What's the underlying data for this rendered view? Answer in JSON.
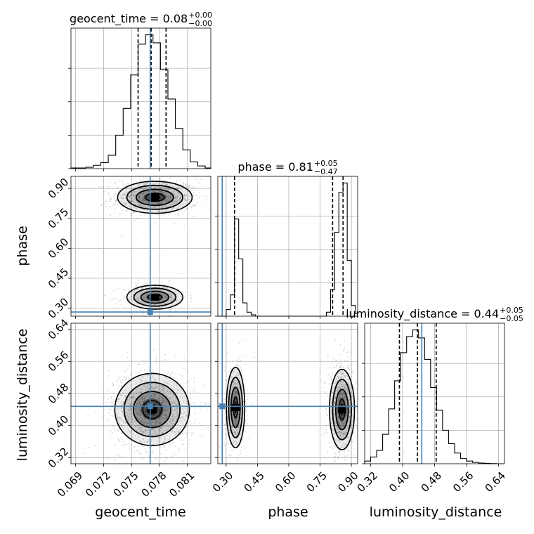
{
  "chart_data": {
    "type": "corner",
    "params": [
      "geocent_time",
      "phase",
      "luminosity_distance"
    ],
    "truths": {
      "geocent_time": 0.077,
      "phase": 0.281,
      "luminosity_distance": 0.448
    },
    "panels": [
      {
        "kind": "hist",
        "param": "geocent_time",
        "title_main": "geocent_time = 0.08",
        "title_sup": "+0.00",
        "title_sub": "−0.00",
        "xlim": [
          0.0685,
          0.0835
        ],
        "bins": [
          0.0685,
          0.0693,
          0.0701,
          0.0709,
          0.0717,
          0.0725,
          0.0733,
          0.0741,
          0.0749,
          0.0757,
          0.0765,
          0.0773,
          0.0781,
          0.0789,
          0.0797,
          0.0805,
          0.0813,
          0.0821,
          0.0829,
          0.0835
        ],
        "counts": [
          0.005,
          0.005,
          0.01,
          0.025,
          0.045,
          0.1,
          0.25,
          0.45,
          0.7,
          0.93,
          1.0,
          0.94,
          0.74,
          0.52,
          0.3,
          0.14,
          0.05,
          0.02,
          0.005
        ],
        "quantiles": [
          0.0757,
          0.0771,
          0.0787
        ]
      },
      {
        "kind": "hist",
        "param": "phase",
        "title_main": "phase = 0.81",
        "title_sup": "+0.05",
        "title_sub": "−0.47",
        "xlim": [
          0.26,
          0.93
        ],
        "bins": [
          0.26,
          0.28,
          0.3,
          0.32,
          0.34,
          0.36,
          0.38,
          0.4,
          0.42,
          0.44,
          0.46,
          0.48,
          0.5,
          0.52,
          0.54,
          0.56,
          0.58,
          0.6,
          0.62,
          0.64,
          0.66,
          0.68,
          0.7,
          0.72,
          0.74,
          0.76,
          0.78,
          0.8,
          0.82,
          0.84,
          0.86,
          0.88,
          0.9,
          0.92,
          0.93
        ],
        "counts": [
          0,
          0,
          0.05,
          0.16,
          0.73,
          0.43,
          0.1,
          0.03,
          0.01,
          0,
          0,
          0,
          0,
          0,
          0,
          0,
          0,
          0,
          0,
          0,
          0,
          0,
          0,
          0,
          0,
          0,
          0.03,
          0.2,
          0.63,
          0.93,
          1.0,
          0.42,
          0.08,
          0.02
        ],
        "quantiles": [
          0.34,
          0.81,
          0.86
        ]
      },
      {
        "kind": "hist",
        "param": "luminosity_distance",
        "title_main": "luminosity_distance = 0.44",
        "title_sup": "+0.05",
        "title_sub": "−0.05",
        "xlim": [
          0.305,
          0.655
        ],
        "bins": [
          0.305,
          0.32,
          0.335,
          0.35,
          0.365,
          0.38,
          0.395,
          0.41,
          0.425,
          0.44,
          0.455,
          0.47,
          0.485,
          0.5,
          0.515,
          0.53,
          0.545,
          0.56,
          0.575,
          0.59,
          0.605,
          0.62,
          0.635,
          0.655
        ],
        "counts": [
          0.02,
          0.05,
          0.1,
          0.22,
          0.41,
          0.62,
          0.83,
          0.95,
          1.0,
          0.94,
          0.78,
          0.57,
          0.4,
          0.25,
          0.15,
          0.08,
          0.04,
          0.02,
          0.01,
          0.005,
          0.003,
          0.001,
          0
        ],
        "quantiles": [
          0.392,
          0.437,
          0.484
        ]
      },
      {
        "kind": "2d",
        "x": "geocent_time",
        "y": "phase",
        "xlim": [
          0.0685,
          0.0835
        ],
        "ylim": [
          0.26,
          0.96
        ],
        "blobs": [
          {
            "cx": 0.0775,
            "cy": 0.855,
            "sx": 0.002,
            "sy": 0.04,
            "weight": 0.7
          },
          {
            "cx": 0.0775,
            "cy": 0.355,
            "sx": 0.0015,
            "sy": 0.03,
            "weight": 0.3
          }
        ]
      },
      {
        "kind": "2d",
        "x": "geocent_time",
        "y": "luminosity_distance",
        "xlim": [
          0.0685,
          0.0835
        ],
        "ylim": [
          0.305,
          0.655
        ],
        "blobs": [
          {
            "cx": 0.0772,
            "cy": 0.44,
            "sx": 0.002,
            "sy": 0.045,
            "weight": 1.0
          }
        ]
      },
      {
        "kind": "2d",
        "x": "phase",
        "y": "luminosity_distance",
        "xlim": [
          0.26,
          0.93
        ],
        "ylim": [
          0.305,
          0.655
        ],
        "blobs": [
          {
            "cx": 0.345,
            "cy": 0.445,
            "sx": 0.022,
            "sy": 0.05,
            "weight": 0.35
          },
          {
            "cx": 0.855,
            "cy": 0.44,
            "sx": 0.03,
            "sy": 0.05,
            "weight": 0.65
          }
        ]
      }
    ],
    "ticks": {
      "geocent_time": [
        "0.069",
        "0.072",
        "0.075",
        "0.078",
        "0.081"
      ],
      "phase": [
        "0.30",
        "0.45",
        "0.60",
        "0.75",
        "0.90"
      ],
      "luminosity_distance": [
        "0.32",
        "0.40",
        "0.48",
        "0.56",
        "0.64"
      ]
    },
    "axis_labels": {
      "geocent_time": "geocent_time",
      "phase": "phase",
      "luminosity_distance": "luminosity_distance"
    },
    "grid": true,
    "colors": {
      "truth": "#4682b4",
      "hist": "#000000",
      "scatter": "#000000"
    }
  }
}
